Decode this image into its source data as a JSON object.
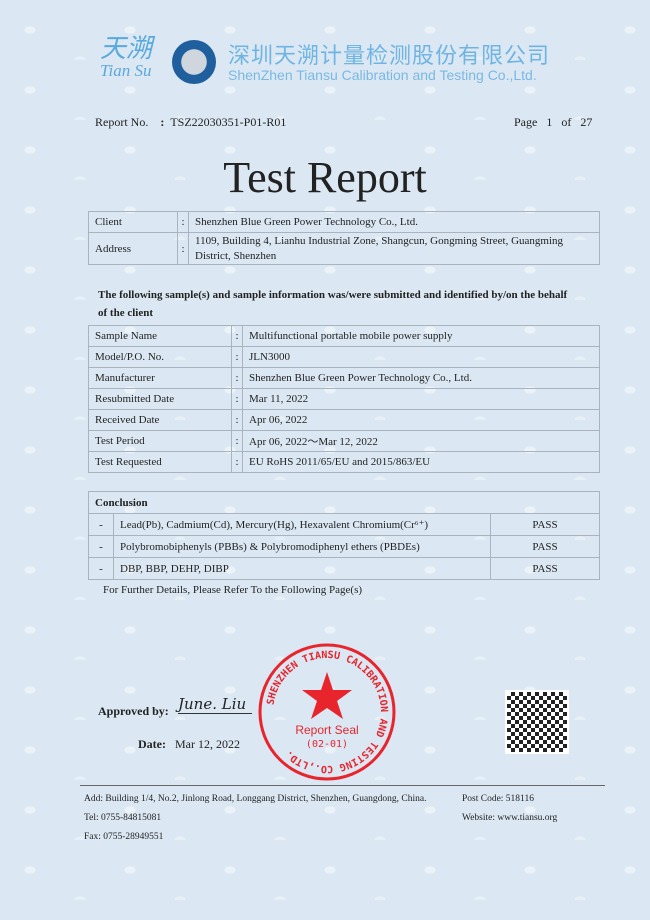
{
  "header": {
    "logo_cn": "天溯",
    "logo_en": "Tian Su",
    "company_cn": "深圳天溯计量检测股份有限公司",
    "company_en": "ShenZhen Tiansu Calibration and Testing Co.,Ltd."
  },
  "report": {
    "no_label": "Report No.",
    "no": "TSZ22030351-P01-R01",
    "page_label": "Page",
    "page": "1",
    "of_label": "of",
    "total": "27",
    "title": "Test Report"
  },
  "client": {
    "client_label": "Client",
    "client": "Shenzhen Blue Green Power Technology Co., Ltd.",
    "address_label": "Address",
    "address": "1109, Building 4, Lianhu Industrial Zone, Shangcun, Gongming Street, Guangming District, Shenzhen"
  },
  "intro": "The following sample(s) and sample information was/were submitted and identified by/on the behalf of the client",
  "sample": [
    {
      "label": "Sample Name",
      "value": "Multifunctional portable mobile power supply"
    },
    {
      "label": "Model/P.O. No.",
      "value": "JLN3000"
    },
    {
      "label": "Manufacturer",
      "value": "Shenzhen Blue Green Power Technology Co., Ltd."
    },
    {
      "label": "Resubmitted Date",
      "value": "Mar 11, 2022"
    },
    {
      "label": "Received Date",
      "value": "Apr 06, 2022"
    },
    {
      "label": "Test Period",
      "value": "Apr 06, 2022～Mar 12, 2022"
    },
    {
      "label": "Test Requested",
      "value": "EU RoHS 2011/65/EU and 2015/863/EU"
    }
  ],
  "conclusion": {
    "title": "Conclusion",
    "rows": [
      {
        "dash": "-",
        "item": "Lead(Pb), Cadmium(Cd), Mercury(Hg), Hexavalent Chromium(Cr⁶⁺)",
        "result": "PASS"
      },
      {
        "dash": "-",
        "item": "Polybromobiphenyls (PBBs) & Polybromodiphenyl ethers (PBDEs)",
        "result": "PASS"
      },
      {
        "dash": "-",
        "item": "DBP, BBP, DEHP, DIBP",
        "result": "PASS"
      }
    ],
    "note": "For Further Details, Please Refer To the Following Page(s)"
  },
  "approval": {
    "approved_label": "Approved by:",
    "signature": "June. Liu",
    "date_label": "Date:",
    "date": "Mar 12, 2022"
  },
  "seal": {
    "ring": "SHENZHEN TIANSU CALIBRATION AND TESTING CO.,LTD.",
    "label": "Report Seal",
    "code": "(02-01)",
    "color": "#e8242c"
  },
  "footer": {
    "address": "Add: Building 1/4, No.2, Jinlong Road, Longgang District, Shenzhen, Guangdong, China.",
    "post": "Post Code: 518116",
    "tel": "Tel: 0755-84815081",
    "website": "Website: www.tiansu.org",
    "fax": "Fax: 0755-28949551"
  }
}
